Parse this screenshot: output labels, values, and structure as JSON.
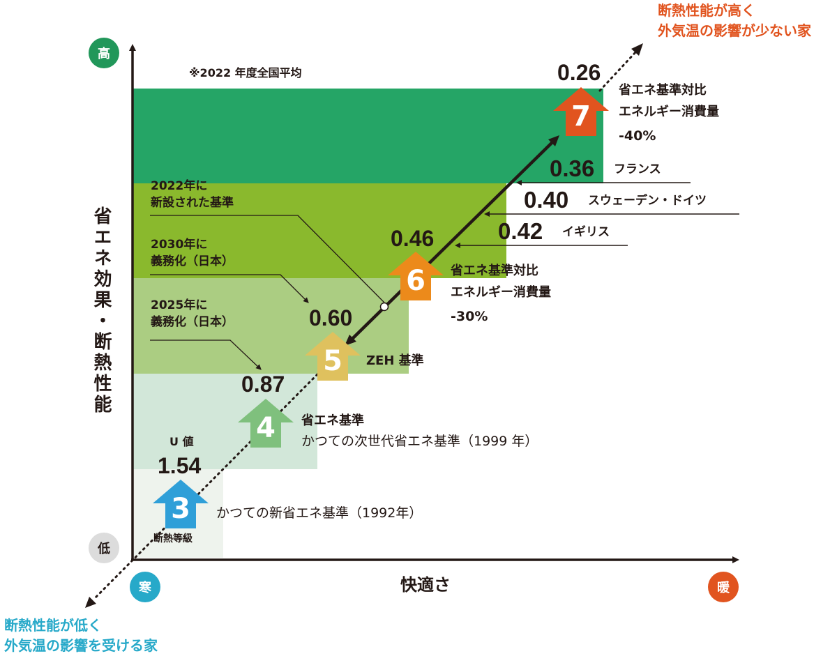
{
  "title_top_right": [
    "断熱性能が高く",
    "外気温の影響が少ない家"
  ],
  "title_bottom_left": [
    "断熱性能が低く",
    "外気温の影響を受ける家"
  ],
  "y_axis": {
    "label": "省エネ効果・断熱性能",
    "high": "高",
    "low": "低"
  },
  "x_axis": {
    "label": "快適さ",
    "cold": "寒",
    "warm": "暖"
  },
  "note_avg": "※2022 年度全国平均",
  "uvalue_label": "U 値",
  "grade_label": "断熱等級",
  "grades": [
    {
      "grade": "3",
      "value": "1.54",
      "desc": "かつての新省エネ基準（1992年）",
      "color": "#2f9fd8"
    },
    {
      "grade": "4",
      "value": "0.87",
      "desc1": "省エネ基準",
      "desc2": "かつての次世代省エネ基準（1999 年）",
      "color": "#7fc07d"
    },
    {
      "grade": "5",
      "value": "0.60",
      "desc": "ZEH 基準",
      "color": "#dfc15e"
    },
    {
      "grade": "6",
      "value": "0.46",
      "desc": [
        "省エネ基準対比",
        "エネルギー消費量",
        "-30%"
      ],
      "color": "#ec8a1b"
    },
    {
      "grade": "7",
      "value": "0.26",
      "desc": [
        "省エネ基準対比",
        "エネルギー消費量",
        "-40%"
      ],
      "color": "#e1541f"
    }
  ],
  "countries": [
    {
      "value": "0.36",
      "name": "フランス"
    },
    {
      "value": "0.40",
      "name": "スウェーデン・ドイツ"
    },
    {
      "value": "0.42",
      "name": "イギリス"
    }
  ],
  "callouts": [
    [
      "2022年に",
      "新設された基準"
    ],
    [
      "2030年に",
      "義務化（日本）"
    ],
    [
      "2025年に",
      "義務化（日本）"
    ]
  ],
  "colors": {
    "band_grade7": "#25a566",
    "band_grade6": "#8ab92d",
    "band_grade5": "#abcd82",
    "band_grade4": "#d2e7d9",
    "band_grade3": "#eef3ed",
    "title_top": "#e1541f",
    "title_bottom": "#27a9c9",
    "circle_high": "#21975a",
    "circle_low": "#dcdcdc",
    "circle_cold": "#27a9c9",
    "circle_warm": "#e1541f"
  }
}
